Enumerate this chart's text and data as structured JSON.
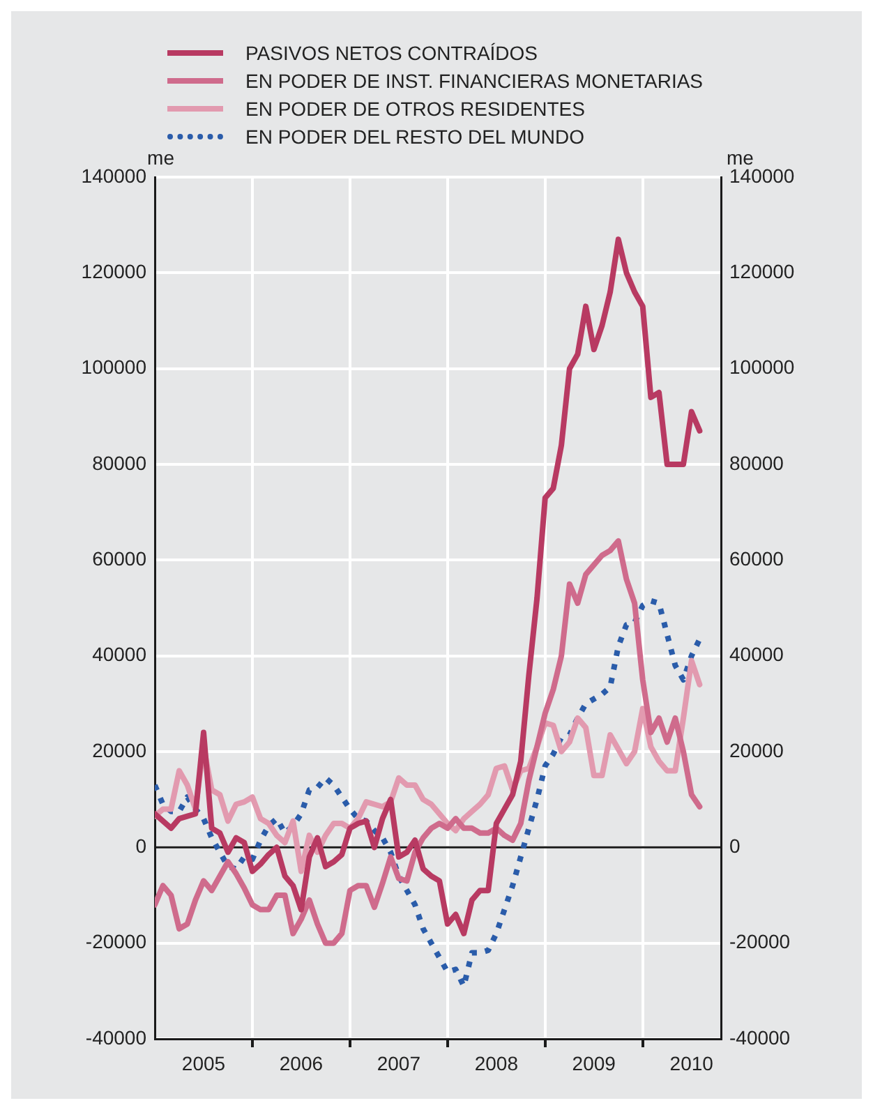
{
  "chart_data": {
    "type": "line",
    "ylabel": "me",
    "y2label": "me",
    "legend": "top left",
    "grid": true,
    "marker": "none",
    "x": [
      "2005-01",
      "2005-02",
      "2005-03",
      "2005-04",
      "2005-05",
      "2005-06",
      "2005-07",
      "2005-08",
      "2005-09",
      "2005-10",
      "2005-11",
      "2005-12",
      "2006-01",
      "2006-02",
      "2006-03",
      "2006-04",
      "2006-05",
      "2006-06",
      "2006-07",
      "2006-08",
      "2006-09",
      "2006-10",
      "2006-11",
      "2006-12",
      "2007-01",
      "2007-02",
      "2007-03",
      "2007-04",
      "2007-05",
      "2007-06",
      "2007-07",
      "2007-08",
      "2007-09",
      "2007-10",
      "2007-11",
      "2007-12",
      "2008-01",
      "2008-02",
      "2008-03",
      "2008-04",
      "2008-05",
      "2008-06",
      "2008-07",
      "2008-08",
      "2008-09",
      "2008-10",
      "2008-11",
      "2008-12",
      "2009-01",
      "2009-02",
      "2009-03",
      "2009-04",
      "2009-05",
      "2009-06",
      "2009-07",
      "2009-08",
      "2009-09",
      "2009-10",
      "2009-11",
      "2009-12",
      "2010-01",
      "2010-02",
      "2010-03",
      "2010-04",
      "2010-05",
      "2010-06",
      "2010-07",
      "2010-08"
    ],
    "series": [
      {
        "name": "PASIVOS NETOS CONTRAÍDOS",
        "color": "#b83a62",
        "line_style": "solid",
        "values": [
          7000,
          5500,
          4000,
          6000,
          6500,
          7000,
          24000,
          4000,
          3000,
          -1000,
          2000,
          1000,
          -5000,
          -3500,
          -1500,
          0,
          -6000,
          -8000,
          -13000,
          -2000,
          2000,
          -4000,
          -3000,
          -1500,
          4000,
          5000,
          5500,
          0,
          6000,
          10000,
          -2000,
          -1000,
          1500,
          -4500,
          -6000,
          -7000,
          -16000,
          -14000,
          -18000,
          -11000,
          -9000,
          -9000,
          5000,
          8000,
          11000,
          18000,
          36000,
          52000,
          73000,
          75000,
          84000,
          100000,
          103000,
          113000,
          104000,
          109000,
          116000,
          127000,
          120000,
          116000,
          113000,
          94000,
          95000,
          80000,
          80000,
          80000,
          91000,
          87000
        ]
      },
      {
        "name": "EN PODER DE INST. FINANCIERAS MONETARIAS",
        "color": "#cf6b8c",
        "line_style": "solid",
        "values": [
          -12000,
          -8000,
          -10000,
          -17000,
          -16000,
          -11000,
          -7000,
          -9000,
          -6000,
          -3000,
          -5500,
          -8500,
          -12000,
          -13000,
          -13000,
          -10000,
          -10000,
          -18000,
          -15000,
          -11000,
          -16000,
          -20000,
          -20000,
          -18000,
          -9000,
          -8000,
          -8000,
          -12500,
          -7500,
          -2000,
          -6500,
          -7000,
          -1000,
          2000,
          4000,
          5000,
          4000,
          6000,
          4000,
          4000,
          3000,
          3000,
          4000,
          2500,
          1500,
          5000,
          14000,
          21000,
          28000,
          33000,
          40000,
          55000,
          51000,
          57000,
          59000,
          61000,
          62000,
          64000,
          56000,
          51000,
          35000,
          24000,
          27000,
          22000,
          27000,
          20000,
          11000,
          8500
        ]
      },
      {
        "name": "EN PODER DE OTROS RESIDENTES",
        "color": "#e29aaf",
        "line_style": "solid",
        "values": [
          6500,
          8000,
          8000,
          16000,
          13000,
          8000,
          21000,
          12000,
          11000,
          5500,
          9000,
          9500,
          10500,
          6000,
          5000,
          2500,
          1000,
          5500,
          -5000,
          2500,
          -1000,
          2500,
          5000,
          5000,
          4000,
          6000,
          9500,
          9000,
          8500,
          9500,
          14500,
          13000,
          13000,
          10000,
          9000,
          7000,
          5000,
          3500,
          6000,
          7500,
          9000,
          11000,
          16500,
          17000,
          12000,
          16000,
          16500,
          21000,
          26000,
          25500,
          20000,
          22000,
          27000,
          25000,
          15000,
          15000,
          23500,
          20500,
          17500,
          20000,
          29000,
          21000,
          18000,
          16000,
          16000,
          27000,
          39000,
          34000
        ]
      },
      {
        "name": "EN PODER DEL RESTO DEL MUNDO",
        "color": "#2a5caa",
        "line_style": "dotted",
        "values": [
          13000,
          9000,
          7500,
          7500,
          10500,
          8000,
          6000,
          2000,
          -1000,
          -4000,
          -4500,
          -2000,
          -2500,
          1500,
          4500,
          6000,
          3000,
          4500,
          7000,
          12000,
          12500,
          14500,
          13000,
          10500,
          8000,
          6000,
          5500,
          3500,
          2000,
          -1000,
          -6000,
          -9000,
          -12000,
          -17000,
          -20000,
          -23000,
          -26000,
          -25500,
          -29000,
          -22000,
          -22000,
          -21500,
          -18000,
          -13000,
          -8000,
          -2000,
          4000,
          10000,
          17000,
          19500,
          23000,
          23500,
          27000,
          30000,
          31000,
          32000,
          33500,
          42000,
          46500,
          47000,
          50500,
          51500,
          51000,
          44500,
          38000,
          35000,
          40000,
          43500
        ]
      }
    ],
    "xlim": [
      "2005-01",
      "2010-10-20"
    ],
    "xticks": [
      {
        "value": "2005-07",
        "label": "2005"
      },
      {
        "value": "2006-01",
        "label": null
      },
      {
        "value": "2006-07",
        "label": "2006"
      },
      {
        "value": "2007-01",
        "label": null
      },
      {
        "value": "2007-07",
        "label": "2007"
      },
      {
        "value": "2008-01",
        "label": null
      },
      {
        "value": "2008-07",
        "label": "2008"
      },
      {
        "value": "2009-01",
        "label": null
      },
      {
        "value": "2009-07",
        "label": "2009"
      },
      {
        "value": "2010-01",
        "label": null
      },
      {
        "value": "2010-07",
        "label": "2010"
      }
    ],
    "ylim": [
      -40000,
      140000
    ],
    "yticks": [
      -40000,
      -20000,
      0,
      20000,
      40000,
      60000,
      80000,
      100000,
      120000,
      140000
    ],
    "y2lim": [
      -40000,
      140000
    ],
    "y2ticks": [
      -40000,
      -20000,
      0,
      20000,
      40000,
      60000,
      80000,
      100000,
      120000,
      140000
    ],
    "ref_lines": [
      {
        "axis": "y",
        "value": 0,
        "color": "#1a1a1a"
      }
    ]
  }
}
